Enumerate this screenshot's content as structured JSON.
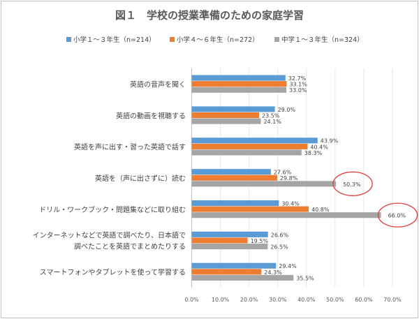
{
  "chart_data": {
    "type": "bar",
    "orientation": "horizontal",
    "title": "図１　学校の授業準備のための家庭学習",
    "categories": [
      [
        "英語の音声を聞く"
      ],
      [
        "英語の動画を視聴する"
      ],
      [
        "英語を声に出す・習った英語で話す"
      ],
      [
        "英語を（声に出さずに）読む"
      ],
      [
        "ドリル・ワークブック・問題集などに取り組む"
      ],
      [
        "インターネットなどで英語で調べたり、日本語で",
        "調べたことを英語でまとめたりする"
      ],
      [
        "スマートフォンやタブレットを使って学習する"
      ]
    ],
    "series": [
      {
        "name": "小学１～３年生（n=214）",
        "color": "#5b9bd5",
        "values": [
          32.7,
          29.0,
          43.9,
          27.6,
          30.4,
          26.6,
          29.4
        ]
      },
      {
        "name": "小学４～６年生（n=272）",
        "color": "#ed7d31",
        "values": [
          33.1,
          23.5,
          40.4,
          29.8,
          40.8,
          19.5,
          24.3
        ]
      },
      {
        "name": "中学１～３年生（n=324）",
        "color": "#a5a5a5",
        "values": [
          33.0,
          24.1,
          38.3,
          50.3,
          66.0,
          26.5,
          35.5
        ]
      }
    ],
    "xlim": [
      0,
      70
    ],
    "xticks": [
      "0.0%",
      "10.0%",
      "20.0%",
      "30.0%",
      "40.0%",
      "50.0%",
      "60.0%",
      "70.0%"
    ],
    "grid": true,
    "legend_position": "top",
    "highlighted": [
      {
        "series": 2,
        "category": 3
      },
      {
        "series": 2,
        "category": 4
      }
    ],
    "highlight_color": "#e03c3c"
  }
}
